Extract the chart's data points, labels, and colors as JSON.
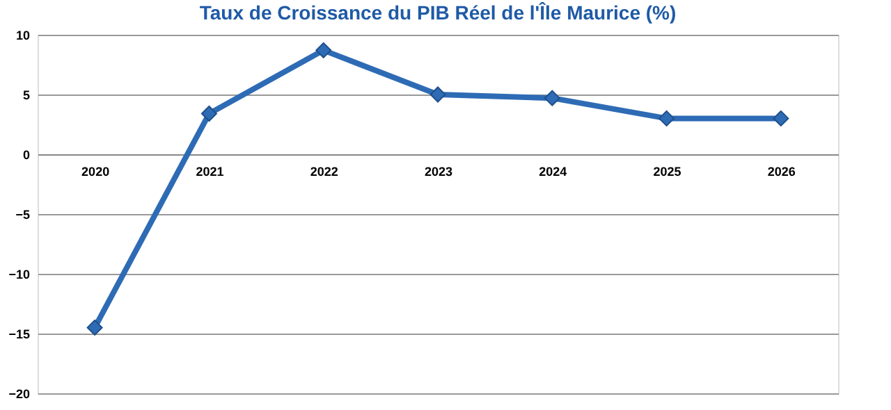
{
  "chart_data": {
    "type": "line",
    "title": "Taux de Croissance du PIB Réel de l'Île Maurice (%)",
    "categories": [
      "2020",
      "2021",
      "2022",
      "2023",
      "2024",
      "2025",
      "2026"
    ],
    "series": [
      {
        "color": "#2e6bb5",
        "values": [
          -14.5,
          3.4,
          8.7,
          5.0,
          4.7,
          3.0,
          3.0
        ]
      }
    ],
    "ylim": [
      -20,
      10
    ],
    "yticks": [
      -20,
      -15,
      -10,
      -5,
      0,
      5,
      10
    ],
    "grid": "y",
    "marker": "diamond",
    "line_style": "solid"
  }
}
